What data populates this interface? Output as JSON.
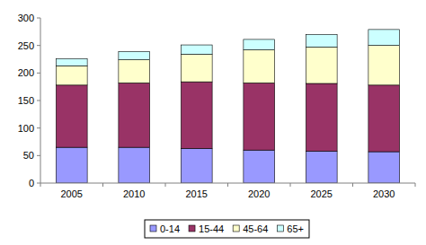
{
  "chart_data": {
    "type": "bar",
    "stacked": true,
    "grid": false,
    "legend": "bottom",
    "categories": [
      "2005",
      "2010",
      "2015",
      "2020",
      "2025",
      "2030"
    ],
    "series": [
      {
        "name": "0-14",
        "color": "#9999ff",
        "values": [
          65,
          65,
          63,
          60,
          58,
          57
        ]
      },
      {
        "name": "15-44",
        "color": "#993366",
        "values": [
          113,
          117,
          121,
          122,
          123,
          121
        ]
      },
      {
        "name": "45-64",
        "color": "#ffffcc",
        "values": [
          35,
          42,
          50,
          60,
          66,
          72
        ]
      },
      {
        "name": "65+",
        "color": "#ccffff",
        "values": [
          13,
          15,
          17,
          19,
          23,
          29
        ]
      }
    ],
    "ylim": [
      0,
      300
    ],
    "yticks": [
      0,
      50,
      100,
      150,
      200,
      250,
      300
    ]
  }
}
